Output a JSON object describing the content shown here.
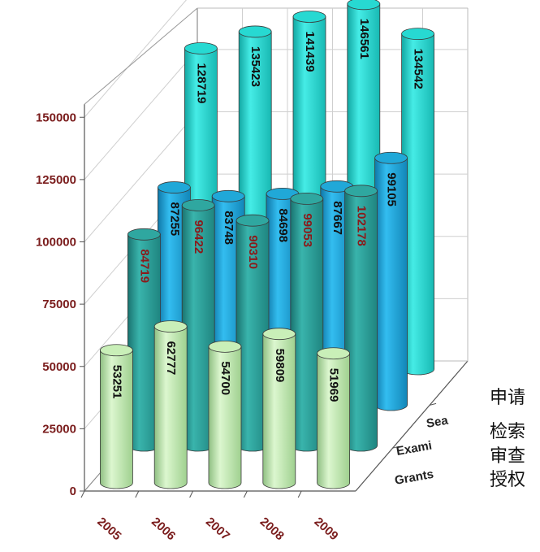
{
  "chart_data": {
    "type": "bar",
    "title": "",
    "xlabel": "",
    "ylabel": "",
    "categories": [
      "2005",
      "2006",
      "2007",
      "2008",
      "2009"
    ],
    "ylim": [
      0,
      150000
    ],
    "yticks": [
      0,
      25000,
      50000,
      75000,
      100000,
      125000,
      150000
    ],
    "depth_labels": [
      "Grants",
      "Exami",
      "Sea"
    ],
    "series": [
      {
        "name": "Grants",
        "values": [
          53251,
          62777,
          54700,
          59809,
          51969
        ],
        "color": "#c9efb8",
        "label_color": "#111111"
      },
      {
        "name": "Exami",
        "values": [
          84719,
          96422,
          90310,
          99053,
          102178
        ],
        "color": "#2fa7a0",
        "label_color": "#8b1a1a"
      },
      {
        "name": "Sea",
        "values": [
          87255,
          83748,
          84698,
          87667,
          99105
        ],
        "color": "#20a8d8",
        "label_color": "#111111"
      },
      {
        "name": "",
        "values": [
          128719,
          135423,
          141439,
          146561,
          134542
        ],
        "color": "#27d9d2",
        "label_color": "#111111"
      }
    ]
  },
  "legend_cn": [
    "申请",
    "检索",
    "审查",
    "授权"
  ]
}
